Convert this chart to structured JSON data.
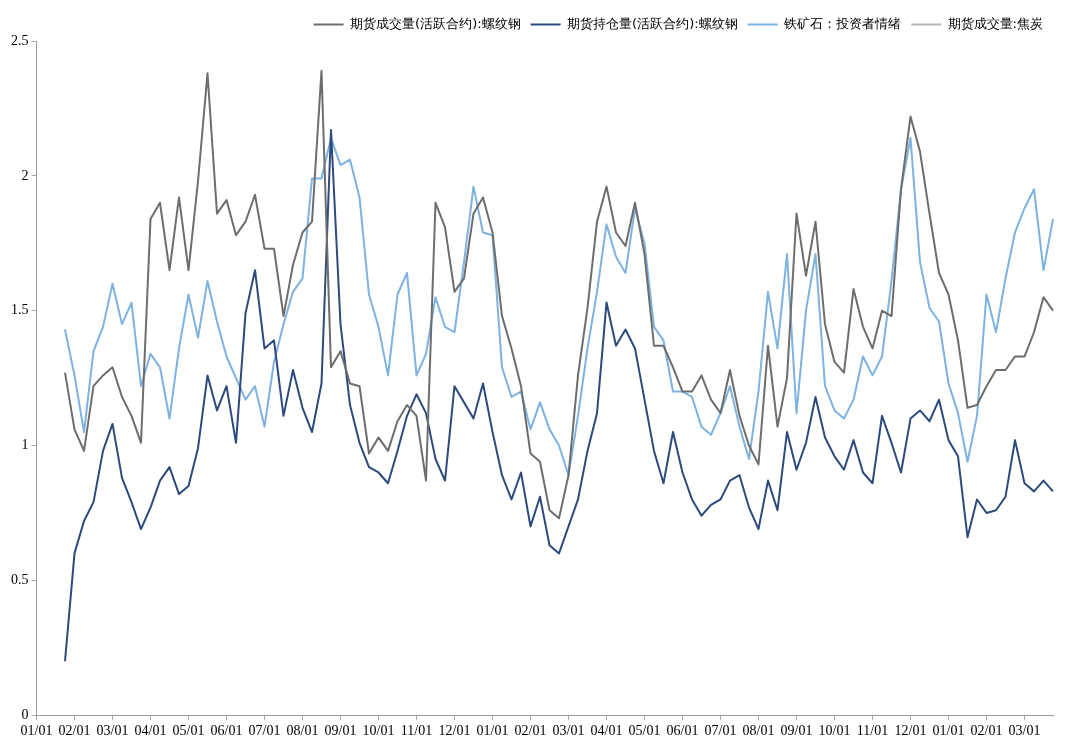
{
  "chart_data": {
    "type": "line",
    "categories": [
      "01/01",
      null,
      null,
      null,
      "02/01",
      null,
      null,
      null,
      "03/01",
      null,
      null,
      null,
      "04/01",
      null,
      null,
      null,
      "05/01",
      null,
      null,
      null,
      "06/01",
      null,
      null,
      null,
      "07/01",
      null,
      null,
      null,
      "08/01",
      null,
      null,
      null,
      "09/01",
      null,
      null,
      null,
      "10/01",
      null,
      null,
      null,
      "11/01",
      null,
      null,
      null,
      "12/01",
      null,
      null,
      null,
      "01/01",
      null,
      null,
      null,
      "02/01",
      null,
      null,
      null,
      "03/01",
      null,
      null,
      null,
      "04/01",
      null,
      null,
      null,
      "05/01",
      null,
      null,
      null,
      "06/01",
      null,
      null,
      null,
      "07/01",
      null,
      null,
      null,
      "08/01",
      null,
      null,
      null,
      "09/01",
      null,
      null,
      null,
      "10/01",
      null,
      null,
      null,
      "11/01",
      null,
      null,
      null,
      "12/01",
      null,
      null,
      null,
      "01/01",
      null,
      null,
      null,
      "02/01",
      null,
      null,
      null,
      "03/01",
      null,
      null,
      null
    ],
    "ylim": [
      0,
      2.5
    ],
    "yticks": [
      0,
      0.5,
      1,
      1.5,
      2,
      2.5
    ],
    "grid": false,
    "legend": "top right",
    "line_style": "solid",
    "series": [
      {
        "name": "期货成交量(活跃合约):螺纹钢",
        "color": "#6d6d6d",
        "values": [
          null,
          null,
          null,
          1.27,
          1.06,
          0.98,
          1.22,
          1.26,
          1.29,
          1.18,
          1.11,
          1.01,
          1.84,
          1.9,
          1.65,
          1.92,
          1.65,
          1.98,
          2.38,
          1.86,
          1.91,
          1.78,
          1.83,
          1.93,
          1.73,
          1.73,
          1.48,
          1.67,
          1.79,
          1.83,
          2.39,
          1.29,
          1.35,
          1.23,
          1.22,
          0.97,
          1.03,
          0.98,
          1.09,
          1.15,
          1.11,
          0.87,
          1.9,
          1.81,
          1.57,
          1.62,
          1.86,
          1.92,
          1.79,
          1.48,
          1.36,
          1.22,
          0.97,
          0.94,
          0.76,
          0.73,
          0.89,
          1.26,
          1.51,
          1.83,
          1.96,
          1.79,
          1.74,
          1.9,
          1.71,
          1.37,
          1.37,
          1.29,
          1.2,
          1.2,
          1.26,
          1.17,
          1.12,
          1.28,
          1.11,
          1.0,
          0.93,
          1.37,
          1.07,
          1.25,
          1.86,
          1.63,
          1.83,
          1.45,
          1.31,
          1.27,
          1.58,
          1.44,
          1.36,
          1.5,
          1.48,
          1.95,
          2.22,
          2.09,
          1.86,
          1.64,
          1.56,
          1.39,
          1.14,
          1.15,
          1.22,
          1.28,
          1.28,
          1.33,
          1.33,
          1.42,
          1.55,
          1.5
        ]
      },
      {
        "name": "期货持仓量(活跃合约):螺纹钢",
        "color": "#2e4a7d",
        "values": [
          null,
          null,
          null,
          0.2,
          0.6,
          0.72,
          0.79,
          0.98,
          1.08,
          0.88,
          0.79,
          0.69,
          0.77,
          0.87,
          0.92,
          0.82,
          0.85,
          0.99,
          1.26,
          1.13,
          1.22,
          1.01,
          1.49,
          1.65,
          1.36,
          1.39,
          1.11,
          1.28,
          1.14,
          1.05,
          1.23,
          2.17,
          1.45,
          1.15,
          1.01,
          0.92,
          0.9,
          0.86,
          0.98,
          1.11,
          1.19,
          1.12,
          0.95,
          0.87,
          1.22,
          1.16,
          1.1,
          1.23,
          1.05,
          0.89,
          0.8,
          0.9,
          0.7,
          0.81,
          0.63,
          0.6,
          0.7,
          0.8,
          0.98,
          1.12,
          1.53,
          1.37,
          1.43,
          1.36,
          1.17,
          0.98,
          0.86,
          1.05,
          0.9,
          0.8,
          0.74,
          0.78,
          0.8,
          0.87,
          0.89,
          0.77,
          0.69,
          0.87,
          0.76,
          1.05,
          0.91,
          1.01,
          1.18,
          1.03,
          0.96,
          0.91,
          1.02,
          0.9,
          0.86,
          1.11,
          1.01,
          0.9,
          1.1,
          1.13,
          1.09,
          1.17,
          1.02,
          0.96,
          0.66,
          0.8,
          0.75,
          0.76,
          0.81,
          1.02,
          0.86,
          0.83,
          0.87,
          0.83
        ]
      },
      {
        "name": "铁矿石：投资者情绪",
        "color": "#7eb2e0",
        "values": [
          null,
          null,
          null,
          1.43,
          1.26,
          1.05,
          1.35,
          1.44,
          1.6,
          1.45,
          1.53,
          1.22,
          1.34,
          1.29,
          1.1,
          1.36,
          1.56,
          1.4,
          1.61,
          1.46,
          1.33,
          1.25,
          1.17,
          1.22,
          1.07,
          1.31,
          1.45,
          1.57,
          1.62,
          1.99,
          1.99,
          2.14,
          2.04,
          2.06,
          1.92,
          1.56,
          1.44,
          1.26,
          1.56,
          1.64,
          1.26,
          1.34,
          1.55,
          1.44,
          1.42,
          1.68,
          1.96,
          1.79,
          1.78,
          1.29,
          1.18,
          1.2,
          1.06,
          1.16,
          1.06,
          1.0,
          0.89,
          1.11,
          1.36,
          1.57,
          1.82,
          1.7,
          1.64,
          1.88,
          1.75,
          1.44,
          1.39,
          1.2,
          1.2,
          1.18,
          1.07,
          1.04,
          1.12,
          1.22,
          1.07,
          0.95,
          1.2,
          1.57,
          1.36,
          1.71,
          1.12,
          1.5,
          1.71,
          1.22,
          1.13,
          1.1,
          1.17,
          1.33,
          1.26,
          1.33,
          1.61,
          1.95,
          2.14,
          1.68,
          1.51,
          1.46,
          1.23,
          1.12,
          0.94,
          1.11,
          1.56,
          1.42,
          1.62,
          1.79,
          1.88,
          1.95,
          1.65,
          1.84
        ]
      },
      {
        "name": "期货成交量:焦炭",
        "color": "#b4b4b4",
        "values": [
          null,
          null,
          null,
          null,
          null,
          null,
          null,
          null,
          null,
          null,
          null,
          null,
          null,
          null,
          null,
          null,
          null,
          null,
          null,
          null,
          null,
          null,
          null,
          null,
          null,
          null,
          null,
          null,
          null,
          null,
          null,
          null,
          null,
          null,
          null,
          null,
          null,
          null,
          null,
          null,
          null,
          null,
          null,
          null,
          null,
          null,
          null,
          null,
          null,
          null,
          null,
          null,
          null,
          null,
          null,
          null,
          null,
          null,
          null,
          null,
          null,
          null,
          null,
          null,
          null,
          null,
          null,
          null,
          null,
          null,
          null,
          null,
          null,
          null,
          null,
          null,
          null,
          null,
          null,
          null,
          null,
          null,
          null,
          null,
          null,
          null,
          null,
          null,
          null,
          null,
          null,
          null,
          null,
          null,
          null,
          null,
          null,
          null,
          null,
          null,
          null,
          null,
          null,
          null,
          null,
          null,
          null,
          null
        ]
      }
    ]
  }
}
